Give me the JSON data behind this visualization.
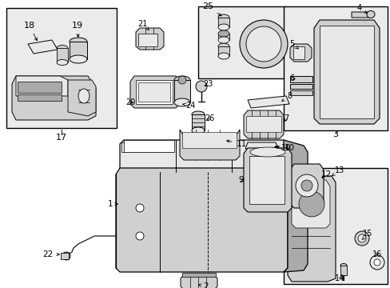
{
  "bg_color": "#ffffff",
  "fig_width": 4.89,
  "fig_height": 3.6,
  "dpi": 100,
  "light_gray": "#e8e8e8",
  "mid_gray": "#d0d0d0",
  "dark_gray": "#aaaaaa",
  "box_fill": "#ebebeb"
}
